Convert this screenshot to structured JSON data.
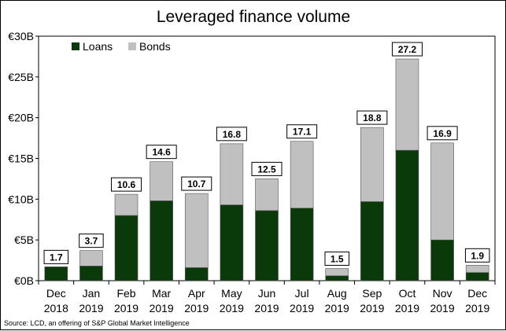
{
  "chart_data": {
    "type": "bar",
    "stacked": true,
    "title": "Leveraged finance volume",
    "xlabel": "",
    "ylabel": "",
    "ylim": [
      0,
      30
    ],
    "yticks": [
      0,
      5,
      10,
      15,
      20,
      25,
      30
    ],
    "ytick_labels": [
      "€0B",
      "€5B",
      "€10B",
      "€15B",
      "€20B",
      "€25B",
      "€30B"
    ],
    "categories": [
      [
        "Dec",
        "2018"
      ],
      [
        "Jan",
        "2019"
      ],
      [
        "Feb",
        "2019"
      ],
      [
        "Mar",
        "2019"
      ],
      [
        "Apr",
        "2019"
      ],
      [
        "May",
        "2019"
      ],
      [
        "Jun",
        "2019"
      ],
      [
        "Jul",
        "2019"
      ],
      [
        "Aug",
        "2019"
      ],
      [
        "Sep",
        "2019"
      ],
      [
        "Oct",
        "2019"
      ],
      [
        "Nov",
        "2019"
      ],
      [
        "Dec",
        "2019"
      ]
    ],
    "series": [
      {
        "name": "Loans",
        "color": "#0a3a0a",
        "values": [
          1.7,
          1.8,
          8.0,
          9.8,
          1.6,
          9.3,
          8.6,
          8.9,
          0.6,
          9.7,
          16.0,
          5.0,
          1.0
        ]
      },
      {
        "name": "Bonds",
        "color": "#c0c0c0",
        "values": [
          0.0,
          1.9,
          2.6,
          4.8,
          9.1,
          7.5,
          3.9,
          8.2,
          0.9,
          9.1,
          11.2,
          11.9,
          0.9
        ]
      }
    ],
    "totals": [
      "1.7",
      "3.7",
      "10.6",
      "14.6",
      "10.7",
      "16.8",
      "12.5",
      "17.1",
      "1.5",
      "18.8",
      "27.2",
      "16.9",
      "1.9"
    ],
    "legend_position": "top-left",
    "grid": false
  },
  "source": "Source: LCD, an offering of S&P Global Market Intelligence"
}
